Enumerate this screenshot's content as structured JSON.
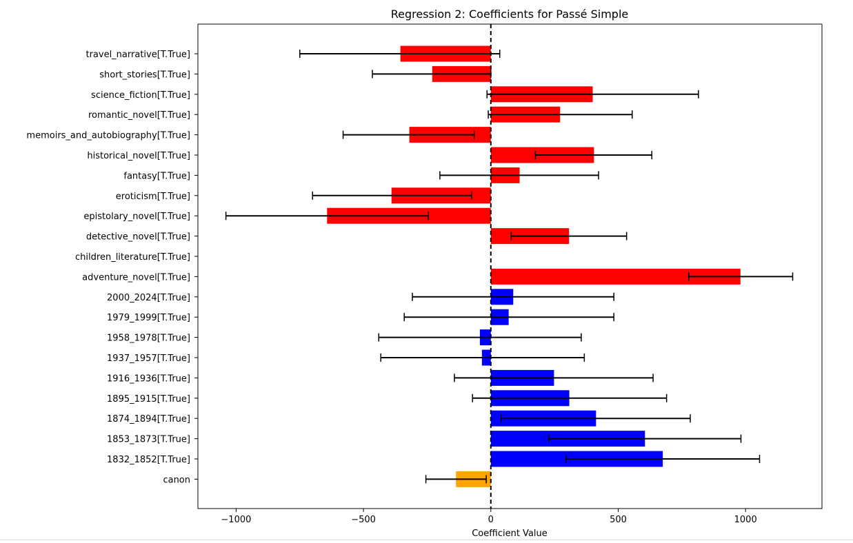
{
  "chart_data": {
    "type": "bar",
    "orientation": "horizontal",
    "title": "Regression 2: Coefficients for Passé Simple",
    "xlabel": "Coefficient Value",
    "ylabel": "",
    "xlim": [
      -1150,
      1300
    ],
    "xticks": [
      -1000,
      -500,
      0,
      500,
      1000
    ],
    "xtick_labels": [
      "−1000",
      "−500",
      "0",
      "500",
      "1000"
    ],
    "grid": false,
    "reference_line": {
      "x": 0,
      "style": "dashed"
    },
    "bars": [
      {
        "label": "travel_narrative[T.True]",
        "value": -355,
        "ci": [
          -750,
          35
        ],
        "color": "#ff0000"
      },
      {
        "label": "short_stories[T.True]",
        "value": -230,
        "ci": [
          -465,
          0
        ],
        "color": "#ff0000"
      },
      {
        "label": "science_fiction[T.True]",
        "value": 400,
        "ci": [
          -15,
          815
        ],
        "color": "#ff0000"
      },
      {
        "label": "romantic_novel[T.True]",
        "value": 272,
        "ci": [
          -10,
          555
        ],
        "color": "#ff0000"
      },
      {
        "label": "memoirs_and_autobiography[T.True]",
        "value": -320,
        "ci": [
          -580,
          -65
        ],
        "color": "#ff0000"
      },
      {
        "label": "historical_novel[T.True]",
        "value": 405,
        "ci": [
          175,
          632
        ],
        "color": "#ff0000"
      },
      {
        "label": "fantasy[T.True]",
        "value": 113,
        "ci": [
          -200,
          423
        ],
        "color": "#ff0000"
      },
      {
        "label": "eroticism[T.True]",
        "value": -390,
        "ci": [
          -700,
          -75
        ],
        "color": "#ff0000"
      },
      {
        "label": "epistolary_novel[T.True]",
        "value": -643,
        "ci": [
          -1040,
          -245
        ],
        "color": "#ff0000"
      },
      {
        "label": "detective_novel[T.True]",
        "value": 307,
        "ci": [
          80,
          533
        ],
        "color": "#ff0000"
      },
      {
        "label": "children_literature[T.True]",
        "value": 0,
        "ci": [
          0,
          0
        ],
        "color": "#ff0000"
      },
      {
        "label": "adventure_novel[T.True]",
        "value": 980,
        "ci": [
          777,
          1185
        ],
        "color": "#ff0000"
      },
      {
        "label": "2000_2024[T.True]",
        "value": 88,
        "ci": [
          -308,
          483
        ],
        "color": "#0000ff"
      },
      {
        "label": "1979_1999[T.True]",
        "value": 70,
        "ci": [
          -340,
          483
        ],
        "color": "#0000ff"
      },
      {
        "label": "1958_1978[T.True]",
        "value": -43,
        "ci": [
          -440,
          355
        ],
        "color": "#0000ff"
      },
      {
        "label": "1937_1957[T.True]",
        "value": -35,
        "ci": [
          -432,
          367
        ],
        "color": "#0000ff"
      },
      {
        "label": "1916_1936[T.True]",
        "value": 248,
        "ci": [
          -143,
          637
        ],
        "color": "#0000ff"
      },
      {
        "label": "1895_1915[T.True]",
        "value": 308,
        "ci": [
          -72,
          690
        ],
        "color": "#0000ff"
      },
      {
        "label": "1874_1894[T.True]",
        "value": 413,
        "ci": [
          40,
          783
        ],
        "color": "#0000ff"
      },
      {
        "label": "1853_1873[T.True]",
        "value": 605,
        "ci": [
          228,
          982
        ],
        "color": "#0000ff"
      },
      {
        "label": "1832_1852[T.True]",
        "value": 675,
        "ci": [
          295,
          1055
        ],
        "color": "#0000ff"
      },
      {
        "label": "canon",
        "value": -137,
        "ci": [
          -255,
          -18
        ],
        "color": "#ffa500"
      }
    ]
  }
}
